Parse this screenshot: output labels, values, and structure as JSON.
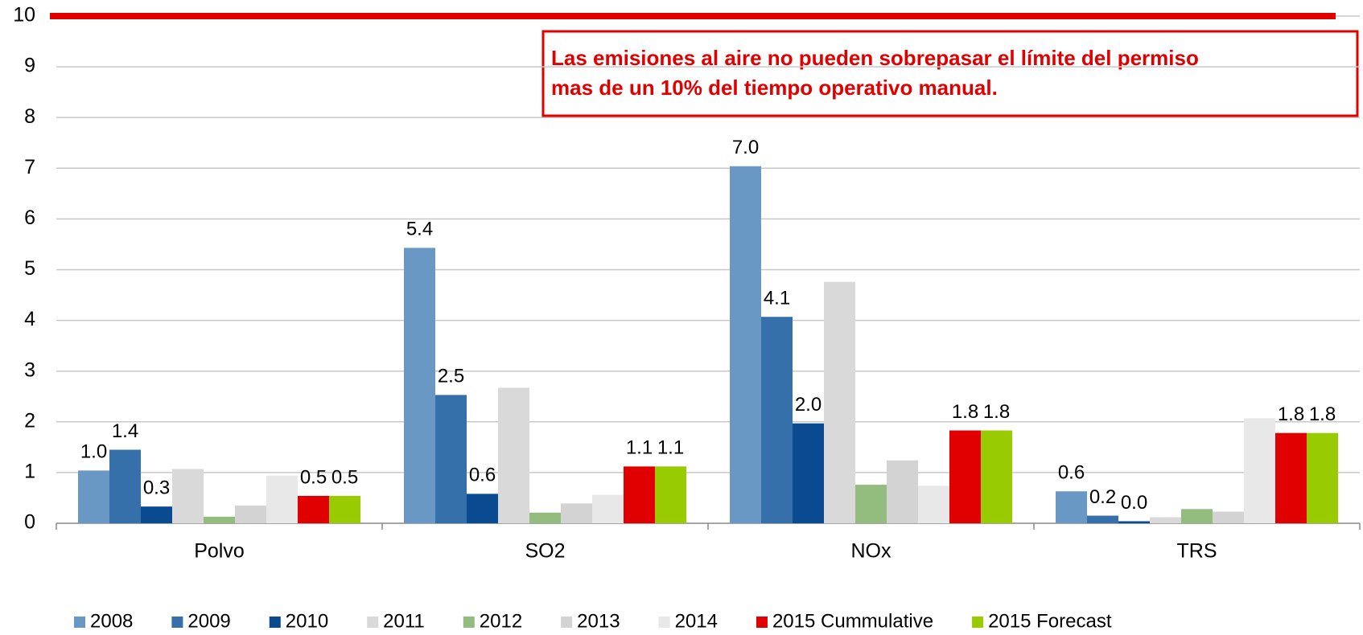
{
  "chart_data": {
    "type": "bar",
    "categories": [
      "Polvo",
      "SO2",
      "NOx",
      "TRS"
    ],
    "series": [
      {
        "name": "2008",
        "color": "#6a98c4",
        "values": [
          1.04,
          5.43,
          7.04,
          0.63
        ],
        "value_labels": [
          "1.0",
          "5.4",
          "7.0",
          "0.6"
        ]
      },
      {
        "name": "2009",
        "color": "#3670aa",
        "values": [
          1.45,
          2.53,
          4.07,
          0.15
        ],
        "value_labels": [
          "1.4",
          "2.5",
          "4.1",
          "0.2"
        ]
      },
      {
        "name": "2010",
        "color": "#0a4a90",
        "values": [
          0.33,
          0.58,
          1.97,
          0.04
        ],
        "value_labels": [
          "0.3",
          "0.6",
          "2.0",
          "0.0"
        ]
      },
      {
        "name": "2011",
        "color": "#d9d9d9",
        "values": [
          1.07,
          2.67,
          4.76,
          0.12
        ]
      },
      {
        "name": "2012",
        "color": "#93bd7f",
        "values": [
          0.13,
          0.21,
          0.76,
          0.28
        ]
      },
      {
        "name": "2013",
        "color": "#d3d3d3",
        "values": [
          0.35,
          0.39,
          1.24,
          0.23
        ]
      },
      {
        "name": "2014",
        "color": "#e8e8e8",
        "values": [
          0.94,
          0.56,
          0.74,
          2.07
        ]
      },
      {
        "name": "2015 Cummulative",
        "color": "#e00000",
        "values": [
          0.54,
          1.12,
          1.83,
          1.78
        ],
        "value_labels": [
          "0.5",
          "1.1",
          "1.8",
          "1.8"
        ]
      },
      {
        "name": "2015 Forecast",
        "color": "#99cc00",
        "values": [
          0.54,
          1.12,
          1.83,
          1.78
        ],
        "value_labels": [
          "0.5",
          "1.1",
          "1.8",
          "1.8"
        ]
      }
    ],
    "reference_line": {
      "value": 10,
      "color": "#e00000"
    },
    "annotation": [
      "Las emisiones al aire no pueden sobrepasar el límite del permiso",
      "mas de un 10% del tiempo operativo manual."
    ],
    "ylim": [
      0,
      10
    ],
    "yticks": [
      0,
      1,
      2,
      3,
      4,
      5,
      6,
      7,
      8,
      9,
      10
    ],
    "grid": true,
    "legend": "bottom"
  }
}
